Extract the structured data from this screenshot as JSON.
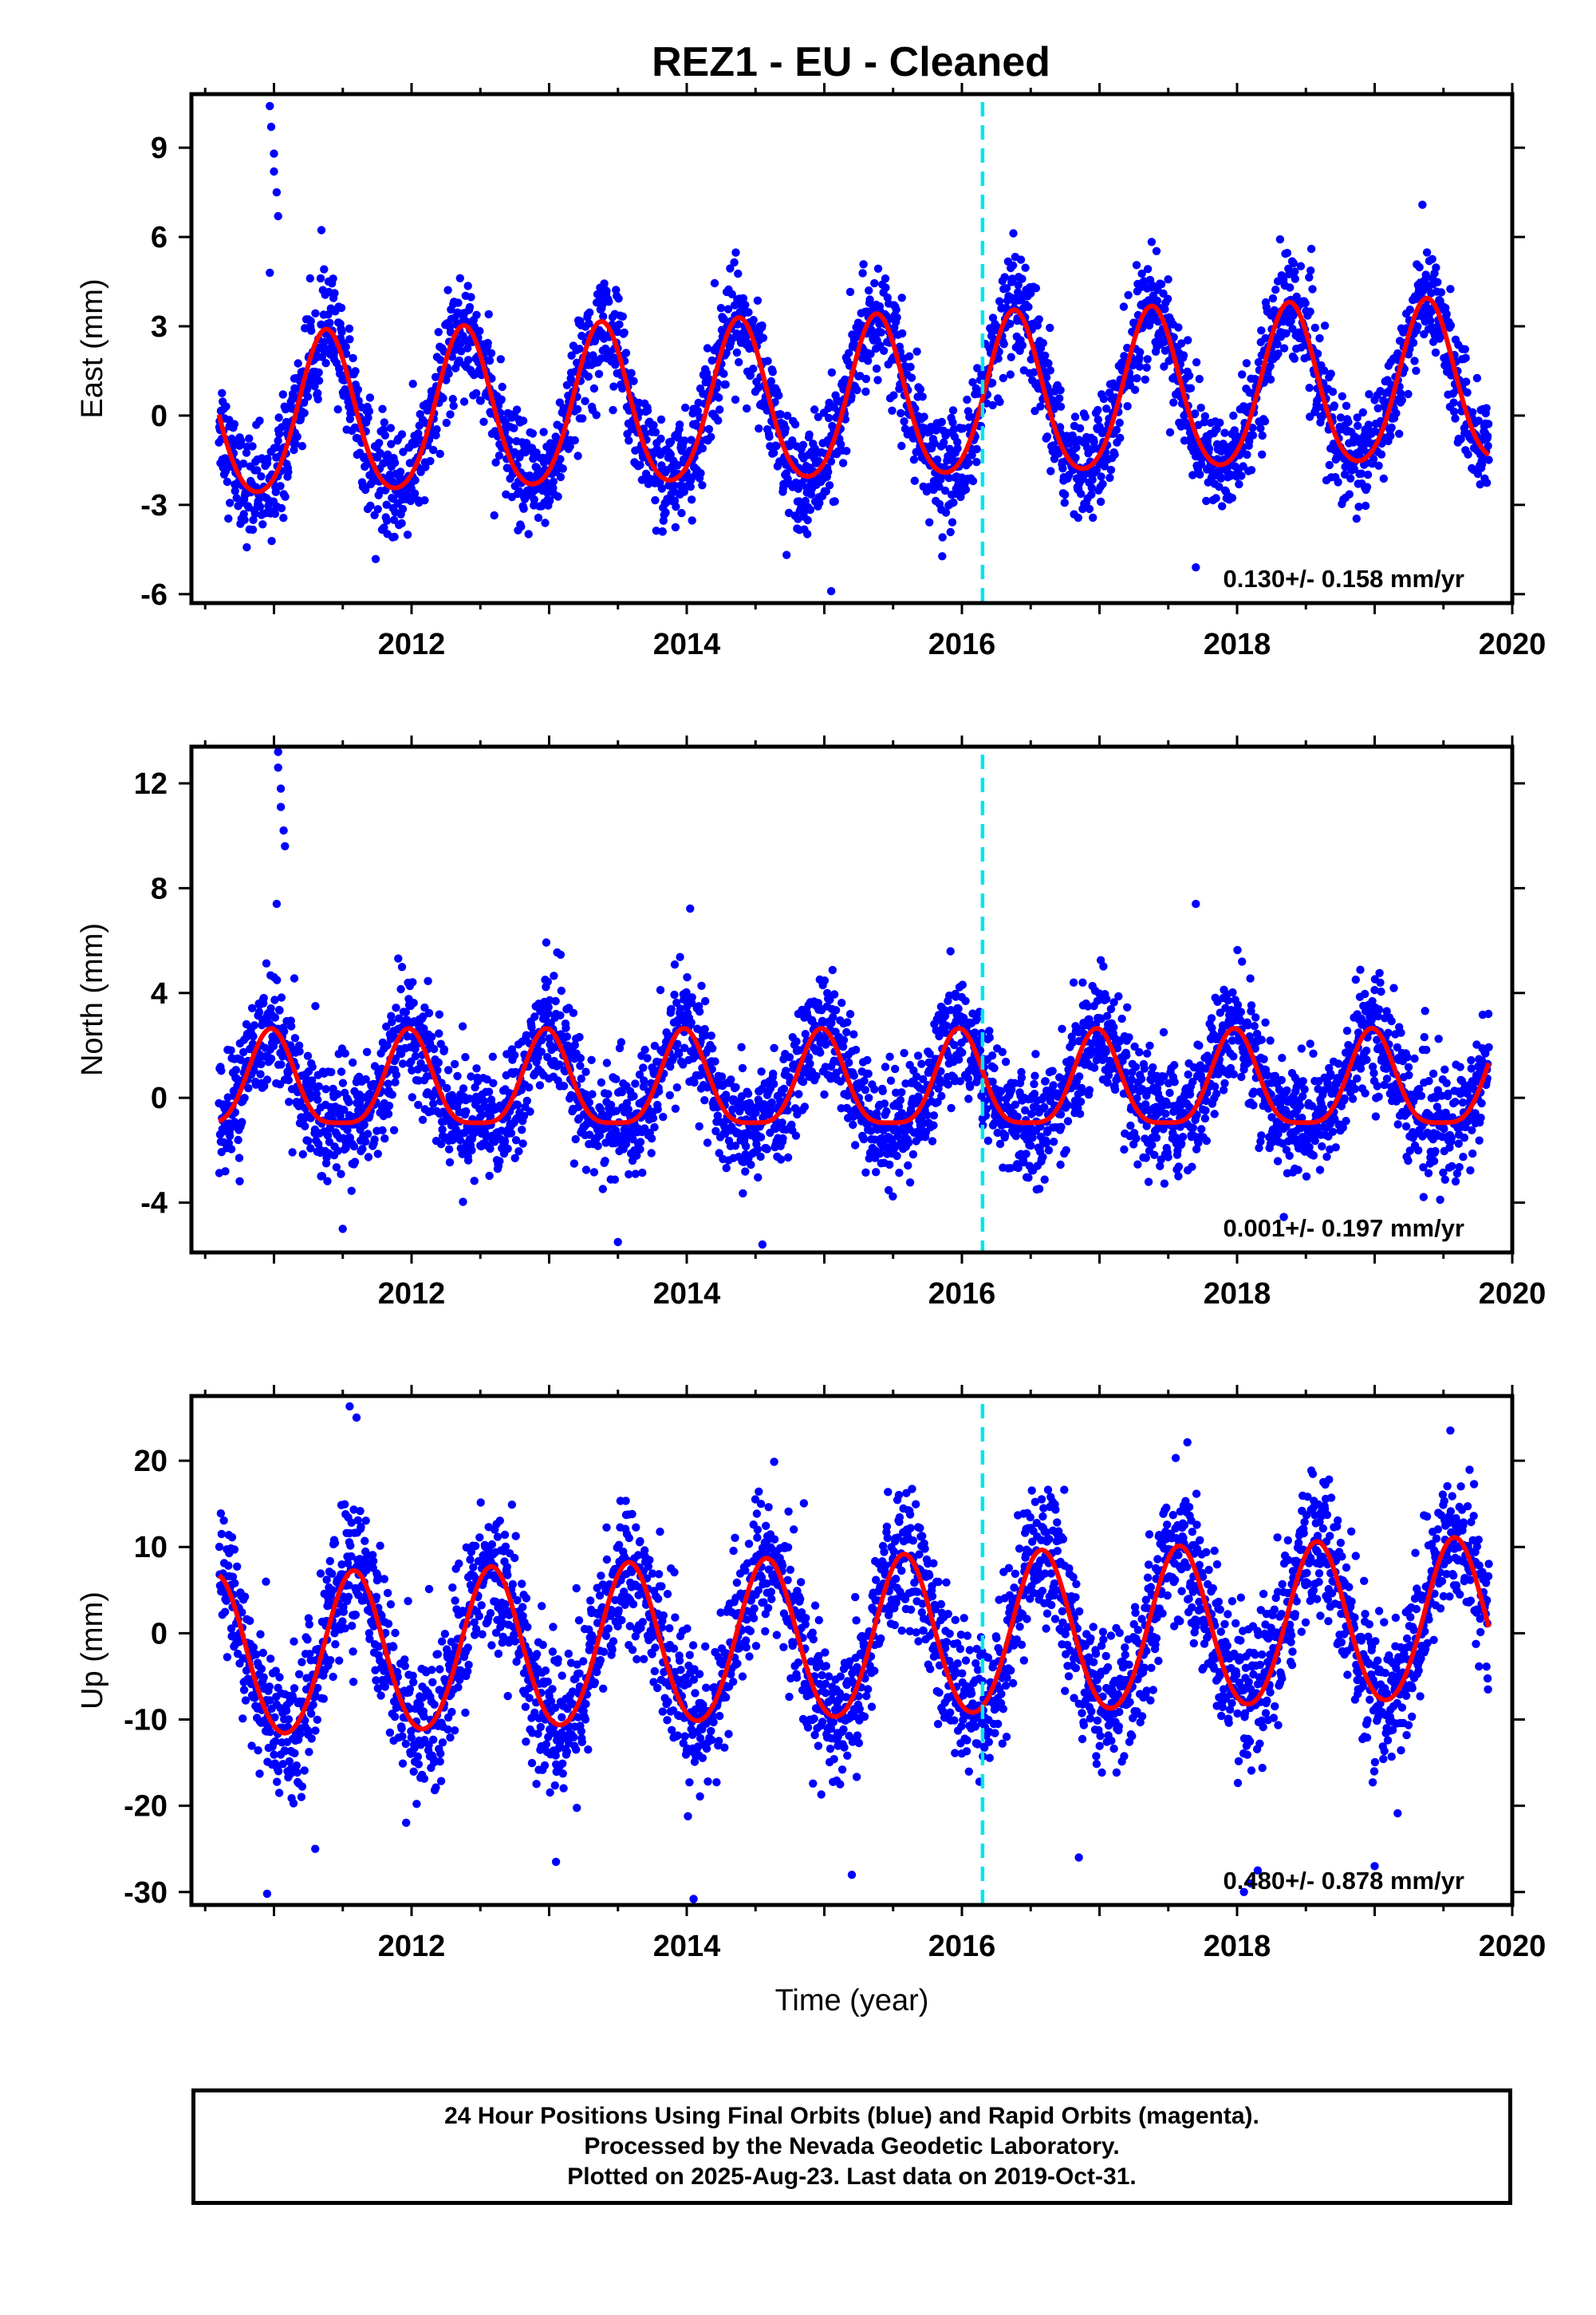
{
  "title": "REZ1  - EU - Cleaned",
  "colors": {
    "points": "#0000ff",
    "fit": "#ff0000",
    "event": "#00e5ee",
    "frame": "#000000"
  },
  "footer": {
    "line1": "24 Hour Positions Using Final Orbits (blue) and Rapid Orbits (magenta).",
    "line2": "Processed by the Nevada Geodetic Laboratory.",
    "line3": "Plotted on 2025-Aug-23. Last data on 2019-Oct-31."
  },
  "chart_data": [
    {
      "type": "scatter",
      "ylabel": "East (mm)",
      "xlabel": "",
      "xlim": [
        2010.4,
        2020.0
      ],
      "ylim": [
        -6.3,
        10.8
      ],
      "xticks": [
        2012,
        2014,
        2016,
        2018,
        2020
      ],
      "xtick_labels": [
        "2012",
        "2014",
        "2016",
        "2018",
        "2020"
      ],
      "yticks": [
        -6,
        -3,
        0,
        3,
        6,
        9
      ],
      "ytick_labels": [
        "-6",
        "-3",
        "0",
        "3",
        "6",
        "9"
      ],
      "event_line_x": 2016.15,
      "rate_label": "0.130+/- 0.158 mm/yr",
      "data_start": 2010.6,
      "data_end": 2019.83,
      "fit": {
        "amp1": 2.7,
        "phase_peak": 2011.38,
        "amp2": 0.3,
        "trend": 0.13,
        "offset": 0.4
      },
      "scatter_sigma": 0.9,
      "outliers": [
        [
          2010.97,
          10.4
        ],
        [
          2010.98,
          9.7
        ],
        [
          2011.0,
          8.8
        ],
        [
          2011.0,
          8.2
        ],
        [
          2011.02,
          7.5
        ],
        [
          2011.03,
          6.7
        ],
        [
          2010.97,
          4.8
        ],
        [
          2015.05,
          -5.9
        ],
        [
          2017.7,
          -5.1
        ]
      ]
    },
    {
      "type": "scatter",
      "ylabel": "North (mm)",
      "xlabel": "",
      "xlim": [
        2010.4,
        2020.0
      ],
      "ylim": [
        -5.9,
        13.4
      ],
      "xticks": [
        2012,
        2014,
        2016,
        2018,
        2020
      ],
      "xtick_labels": [
        "2012",
        "2014",
        "2016",
        "2018",
        "2020"
      ],
      "yticks": [
        -4,
        0,
        4,
        8,
        12
      ],
      "ytick_labels": [
        "-4",
        "0",
        "4",
        "8",
        "12"
      ],
      "event_line_x": 2016.15,
      "rate_label": "0.001+/- 0.197 mm/yr",
      "data_start": 2010.6,
      "data_end": 2019.83,
      "fit": {
        "amp1": 1.8,
        "phase_peak": 2010.98,
        "amp2": 0.45,
        "trend": 0.001,
        "offset": 0.4
      },
      "scatter_sigma": 1.1,
      "outliers": [
        [
          2011.03,
          13.2
        ],
        [
          2011.03,
          12.6
        ],
        [
          2011.05,
          11.8
        ],
        [
          2011.05,
          11.1
        ],
        [
          2011.07,
          10.2
        ],
        [
          2011.08,
          9.6
        ],
        [
          2011.02,
          7.4
        ],
        [
          2017.7,
          7.4
        ],
        [
          2011.5,
          -5.0
        ],
        [
          2013.5,
          -5.5
        ],
        [
          2014.55,
          -5.6
        ]
      ]
    },
    {
      "type": "scatter",
      "ylabel": "Up (mm)",
      "xlabel": "Time (year)",
      "xlim": [
        2010.4,
        2020.0
      ],
      "ylim": [
        -31.5,
        27.5
      ],
      "xticks": [
        2012,
        2014,
        2016,
        2018,
        2020
      ],
      "xtick_labels": [
        "2012",
        "2014",
        "2016",
        "2018",
        "2020"
      ],
      "yticks": [
        -30,
        -20,
        -10,
        0,
        10,
        20
      ],
      "ytick_labels": [
        "-30",
        "-20",
        "-10",
        "0",
        "10",
        "20"
      ],
      "event_line_x": 2016.15,
      "rate_label": "0.480+/- 0.878 mm/yr",
      "data_start": 2010.6,
      "data_end": 2019.83,
      "fit": {
        "amp1": 9.3,
        "phase_peak": 2011.58,
        "amp2": 0.6,
        "trend": 0.48,
        "offset": -0.9
      },
      "scatter_sigma": 4.2,
      "outliers": [
        [
          2011.55,
          26.3
        ],
        [
          2011.6,
          25.0
        ],
        [
          2019.55,
          23.5
        ],
        [
          2018.05,
          -30.0
        ],
        [
          2018.1,
          -29.0
        ],
        [
          2014.05,
          -30.8
        ],
        [
          2010.95,
          -30.2
        ],
        [
          2011.3,
          -25.0
        ],
        [
          2013.05,
          -26.5
        ],
        [
          2015.2,
          -28.0
        ],
        [
          2016.85,
          -26.0
        ],
        [
          2019.0,
          -27.0
        ],
        [
          2018.15,
          -27.5
        ]
      ]
    }
  ]
}
